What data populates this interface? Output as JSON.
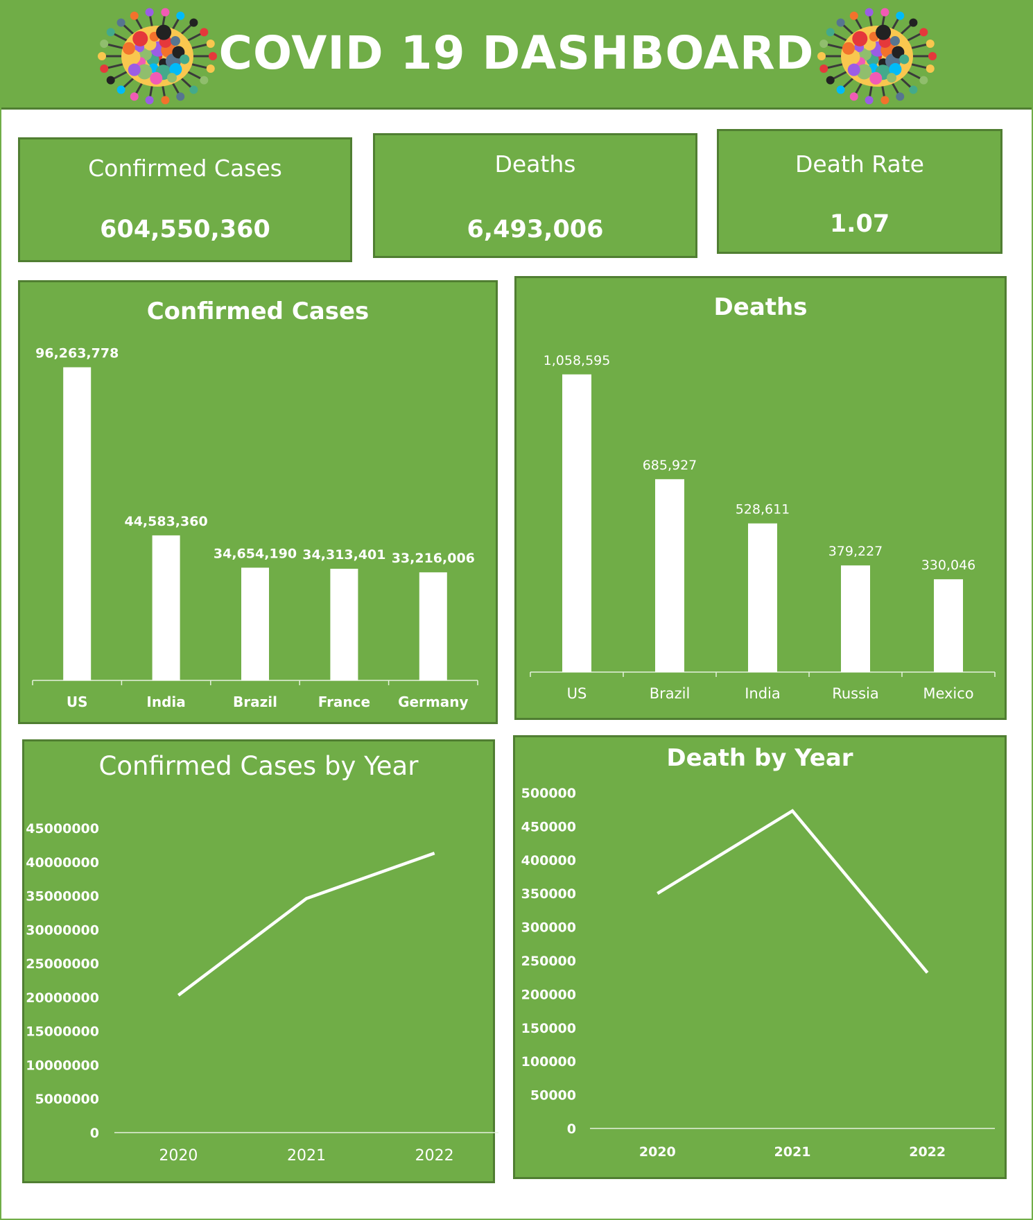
{
  "header": {
    "title": "COVID 19 DASHBOARD",
    "icons": [
      "virus-icon",
      "virus-icon"
    ]
  },
  "kpis": [
    {
      "label": "Confirmed Cases",
      "value": "604,550,360"
    },
    {
      "label": "Deaths",
      "value": "6,493,006"
    },
    {
      "label": "Death Rate",
      "value": "1.07"
    }
  ],
  "colors": {
    "panel": "#70ad47",
    "border": "#507e32",
    "marks": "#ffffff"
  },
  "chart_data": [
    {
      "type": "bar",
      "title": "Confirmed Cases",
      "categories": [
        "US",
        "India",
        "Brazil",
        "France",
        "Germany"
      ],
      "values": [
        96263778,
        44583360,
        34654190,
        34313401,
        33216006
      ],
      "data_labels": [
        "96,263,778",
        "44,583,360",
        "34,654,190",
        "34,313,401",
        "33,216,006"
      ],
      "ylim": [
        0,
        100000000
      ],
      "grid": false
    },
    {
      "type": "bar",
      "title": "Deaths",
      "categories": [
        "US",
        "Brazil",
        "India",
        "Russia",
        "Mexico"
      ],
      "values": [
        1058595,
        685927,
        528611,
        379227,
        330046
      ],
      "data_labels": [
        "1,058,595",
        "685,927",
        "528,611",
        "379,227",
        "330,046"
      ],
      "ylim": [
        0,
        1100000
      ],
      "grid": false
    },
    {
      "type": "line",
      "title": "Confirmed Cases by Year",
      "categories": [
        "2020",
        "2021",
        "2022"
      ],
      "values": [
        20300000,
        34600000,
        41300000
      ],
      "ylim": [
        0,
        45000000
      ],
      "yticks": [
        "0",
        "5000000",
        "10000000",
        "15000000",
        "20000000",
        "25000000",
        "30000000",
        "35000000",
        "40000000",
        "45000000"
      ],
      "grid": false
    },
    {
      "type": "line",
      "title": "Death by Year",
      "categories": [
        "2020",
        "2021",
        "2022"
      ],
      "values": [
        350000,
        473000,
        232000
      ],
      "ylim": [
        0,
        500000
      ],
      "yticks": [
        "0",
        "50000",
        "100000",
        "150000",
        "200000",
        "250000",
        "300000",
        "350000",
        "400000",
        "450000",
        "500000"
      ],
      "grid": false
    }
  ]
}
